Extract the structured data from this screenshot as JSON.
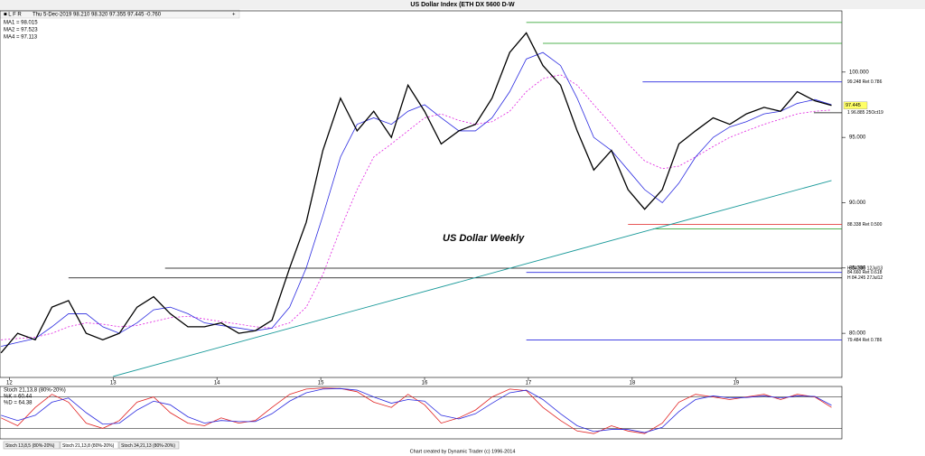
{
  "chart_data": {
    "type": "line",
    "title": "US Dollar Index (ETH DX 5600 D-W",
    "info": "Thu 5-Dec-2019  98.210  98.320  97.355  97.445  -0.760",
    "ma_labels": [
      "MA1 = 98.015",
      "MA2 = 97.523",
      "MA4 = 97.113"
    ],
    "annotation": "US Dollar Weekly",
    "footer": "Chart created by Dynamic Trader  (c) 1996-2014",
    "tabs": [
      "Stoch 13,8,5 (80%-20%)",
      "Stoch 21,13,8 (80%-20%)",
      "Stoch 34,21,13 (80%-20%)"
    ],
    "xlim": [
      2011.91,
      2020.02
    ],
    "xticks": [
      {
        "value": 2012,
        "label": "12"
      },
      {
        "value": 2013,
        "label": "13"
      },
      {
        "value": 2014,
        "label": "14"
      },
      {
        "value": 2015,
        "label": "15"
      },
      {
        "value": 2016,
        "label": "16"
      },
      {
        "value": 2017,
        "label": "17"
      },
      {
        "value": 2018,
        "label": "18"
      },
      {
        "value": 2019,
        "label": "19"
      }
    ],
    "ylim": [
      76.62,
      104.69
    ],
    "yticks": [
      {
        "value": 80,
        "label": "80.000"
      },
      {
        "value": 85,
        "label": "85.000"
      },
      {
        "value": 90,
        "label": "90.000"
      },
      {
        "value": 95,
        "label": "95.000"
      },
      {
        "value": 100,
        "label": "100.000"
      }
    ],
    "last": 97.445,
    "x": [
      2011.92,
      2012.08,
      2012.25,
      2012.41,
      2012.57,
      2012.74,
      2012.9,
      2013.06,
      2013.23,
      2013.39,
      2013.55,
      2013.72,
      2013.88,
      2014.04,
      2014.21,
      2014.37,
      2014.53,
      2014.7,
      2014.86,
      2015.02,
      2015.19,
      2015.35,
      2015.51,
      2015.68,
      2015.84,
      2016.0,
      2016.16,
      2016.33,
      2016.49,
      2016.65,
      2016.82,
      2016.98,
      2017.14,
      2017.31,
      2017.47,
      2017.63,
      2017.8,
      2017.96,
      2018.12,
      2018.29,
      2018.45,
      2018.61,
      2018.78,
      2018.94,
      2019.1,
      2019.27,
      2019.43,
      2019.59,
      2019.76,
      2019.92
    ],
    "series": [
      {
        "name": "Price",
        "color": "#000000",
        "width": 1.3,
        "values": [
          78.5,
          80,
          79.5,
          82,
          82.5,
          80,
          79.5,
          80,
          82,
          82.8,
          81.5,
          80.5,
          80.5,
          80.8,
          80,
          80.2,
          81,
          85,
          88.5,
          94,
          98,
          95.5,
          97,
          95,
          99,
          97,
          94.5,
          95.5,
          96,
          98,
          101.5,
          103,
          100.5,
          99,
          95.5,
          92.5,
          94,
          91,
          89.5,
          91,
          94.5,
          95.5,
          96.5,
          96,
          96.8,
          97.3,
          97,
          98.5,
          97.8,
          97.445
        ]
      },
      {
        "name": "MA2",
        "color": "#2a2ae0",
        "width": 0.8,
        "values": [
          79,
          79.3,
          79.6,
          80.5,
          81.5,
          81.5,
          80.5,
          80,
          80.8,
          81.8,
          82,
          81.5,
          80.8,
          80.6,
          80.4,
          80.2,
          80.4,
          82,
          85,
          89,
          93.5,
          96,
          96.5,
          96,
          97,
          97.5,
          96.5,
          95.5,
          95.5,
          96.5,
          98.5,
          101,
          101.5,
          100.5,
          98,
          95,
          94,
          92.5,
          91,
          90,
          91.5,
          93.5,
          95,
          95.8,
          96.2,
          96.8,
          97,
          97.6,
          97.9,
          97.5
        ]
      },
      {
        "name": "MA4",
        "color": "#e020e0",
        "width": 0.8,
        "dashed": true,
        "values": [
          79.5,
          79.6,
          79.7,
          80,
          80.5,
          80.8,
          80.7,
          80.5,
          80.6,
          80.9,
          81.2,
          81.3,
          81.1,
          80.9,
          80.7,
          80.5,
          80.4,
          80.8,
          82,
          84.5,
          88,
          91,
          93.5,
          94.5,
          95.5,
          96.5,
          96.8,
          96.3,
          96,
          96.2,
          97,
          98.5,
          99.5,
          99.8,
          99,
          97.5,
          96,
          94.5,
          93.2,
          92.6,
          92.8,
          93.5,
          94.3,
          95,
          95.5,
          96,
          96.4,
          96.8,
          97,
          97.1
        ]
      }
    ],
    "levels": [
      {
        "value": 103.8,
        "from": 2016.98,
        "color": "#1a9a1a"
      },
      {
        "value": 102.2,
        "from": 2017.14,
        "color": "#1a9a1a"
      },
      {
        "value": 99.248,
        "from": 2018.1,
        "color": "#2a2ae0",
        "label": "99.248 Ret 0.786"
      },
      {
        "value": 96.885,
        "from": 2019.75,
        "color": "#000000",
        "label": "1 96.885 25Oct19"
      },
      {
        "value": 88.338,
        "from": 2017.96,
        "color": "#e02020",
        "label": "88.338 Ret 0.500"
      },
      {
        "value": 88.0,
        "from": 2018.2,
        "color": "#1a9a1a"
      },
      {
        "value": 84.985,
        "from": 2013.5,
        "color": "#000000",
        "label": "H 84.985 12Jul13"
      },
      {
        "value": 84.66,
        "from": 2016.98,
        "color": "#2a2ae0",
        "label": "84.660 Ret 0.618"
      },
      {
        "value": 84.245,
        "from": 2012.57,
        "color": "#000000",
        "label": "H 84.245 27Jul12"
      },
      {
        "value": 79.484,
        "from": 2016.98,
        "color": "#2a2ae0",
        "label": "79.484 Ret 0.786"
      }
    ],
    "trendline": {
      "x": [
        2013.0,
        2019.92
      ],
      "y": [
        76.7,
        91.7
      ],
      "color": "#1a9a9a"
    },
    "stoch": {
      "title": "Stoch 21,13,8 (80%-20%)",
      "labels": [
        "%K = 60.44",
        "%D = 64.38"
      ],
      "ylim": [
        0,
        100
      ],
      "levels": [
        20,
        80
      ],
      "series": [
        {
          "name": "%K",
          "color": "#e02020",
          "values": [
            40,
            25,
            60,
            85,
            70,
            30,
            20,
            35,
            70,
            80,
            50,
            30,
            25,
            40,
            30,
            35,
            60,
            85,
            95,
            97,
            96,
            90,
            70,
            60,
            85,
            65,
            30,
            40,
            55,
            80,
            95,
            92,
            60,
            35,
            15,
            10,
            25,
            15,
            10,
            30,
            70,
            85,
            80,
            75,
            80,
            85,
            75,
            85,
            80,
            60
          ]
        },
        {
          "name": "%D",
          "color": "#2a2ae0",
          "values": [
            45,
            35,
            45,
            70,
            78,
            50,
            28,
            30,
            55,
            72,
            65,
            42,
            30,
            35,
            33,
            33,
            48,
            72,
            88,
            95,
            96,
            93,
            80,
            68,
            75,
            72,
            45,
            38,
            48,
            68,
            88,
            93,
            75,
            48,
            25,
            14,
            18,
            18,
            12,
            22,
            52,
            75,
            82,
            78,
            79,
            82,
            78,
            82,
            81,
            64
          ]
        }
      ]
    }
  }
}
